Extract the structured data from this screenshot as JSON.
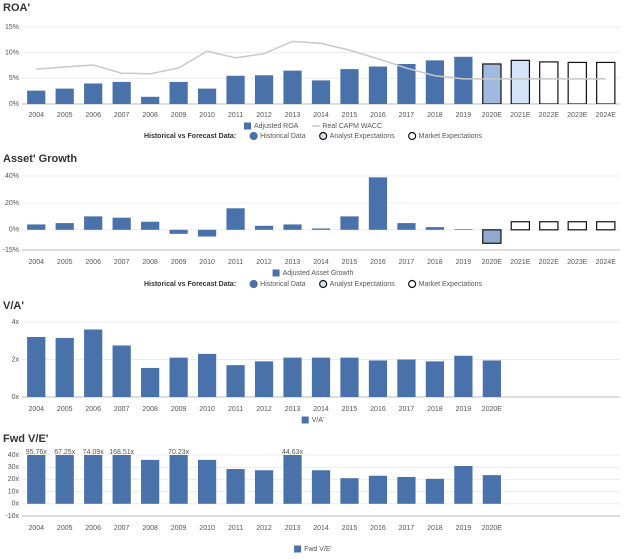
{
  "chart_data": [
    {
      "type": "bar",
      "title": "ROA'",
      "categories": [
        "2004",
        "2005",
        "2006",
        "2007",
        "2008",
        "2009",
        "2010",
        "2011",
        "2012",
        "2013",
        "2014",
        "2015",
        "2016",
        "2017",
        "2018",
        "2019",
        "2020E",
        "2021E",
        "2022E",
        "2023E",
        "2024E"
      ],
      "series": [
        {
          "name": "Adjusted ROA",
          "color": "#4a72aa",
          "colors": [
            "#4a72aa",
            "#4a72aa",
            "#4a72aa",
            "#4a72aa",
            "#4a72aa",
            "#4a72aa",
            "#4a72aa",
            "#4a72aa",
            "#4a72aa",
            "#4a72aa",
            "#4a72aa",
            "#4a72aa",
            "#4a72aa",
            "#4a72aa",
            "#4a72aa",
            "#4a72aa",
            "#a0b9de",
            "#d3e3f8",
            "#ffffff",
            "#ffffff",
            "#ffffff"
          ],
          "values": [
            2.6,
            3.0,
            4.0,
            4.3,
            1.4,
            4.3,
            3.0,
            5.5,
            5.6,
            6.5,
            4.6,
            6.8,
            7.3,
            7.8,
            8.5,
            9.2,
            7.8,
            8.5,
            8.2,
            8.1,
            8.1
          ]
        },
        {
          "name": "Real CAPM WACC",
          "type": "line",
          "color": "#c8c8c8",
          "values": [
            6.8,
            7.2,
            7.6,
            6.0,
            5.9,
            7.0,
            10.3,
            9.0,
            9.8,
            12.2,
            11.8,
            10.5,
            8.8,
            7.0,
            5.5,
            4.9,
            4.9,
            4.9,
            4.9,
            4.9,
            4.9
          ]
        }
      ],
      "ylim": [
        0,
        15
      ],
      "yticks": [
        {
          "value": 0,
          "label": "0%"
        },
        {
          "value": 5,
          "label": "5%"
        },
        {
          "value": 10,
          "label": "10%"
        },
        {
          "value": 15,
          "label": "15%"
        }
      ],
      "grid": true,
      "forecast_legend": {
        "title": "Historical vs Forecast Data:",
        "items": [
          {
            "name": "Historical Data",
            "color": "#4a72aa"
          },
          {
            "name": "Analyst Expectations",
            "color": "#d3e3f8"
          },
          {
            "name": "Market Expectations",
            "color": "#ffffff"
          }
        ]
      }
    },
    {
      "type": "bar",
      "title": "Asset' Growth",
      "categories": [
        "2004",
        "2005",
        "2006",
        "2007",
        "2008",
        "2009",
        "2010",
        "2011",
        "2012",
        "2013",
        "2014",
        "2015",
        "2016",
        "2017",
        "2018",
        "2019",
        "2020E",
        "2021E",
        "2022E",
        "2023E",
        "2024E"
      ],
      "series": [
        {
          "name": "Adjusted Asset Growth",
          "color": "#4a72aa",
          "colors": [
            "#4a72aa",
            "#4a72aa",
            "#4a72aa",
            "#4a72aa",
            "#4a72aa",
            "#4a72aa",
            "#4a72aa",
            "#4a72aa",
            "#4a72aa",
            "#4a72aa",
            "#4a72aa",
            "#4a72aa",
            "#4a72aa",
            "#4a72aa",
            "#4a72aa",
            "#4a72aa",
            "#8fa9cf",
            "#ffffff",
            "#ffffff",
            "#ffffff",
            "#ffffff"
          ],
          "values": [
            4,
            5,
            10,
            9,
            6,
            -3,
            -5,
            16,
            3,
            4,
            1,
            10,
            39,
            5,
            2,
            0.5,
            -10,
            6,
            6,
            6,
            6
          ]
        }
      ],
      "ylim": [
        -15,
        40
      ],
      "yticks": [
        {
          "value": -15,
          "label": "-15%"
        },
        {
          "value": 0,
          "label": "0%"
        },
        {
          "value": 20,
          "label": "20%"
        },
        {
          "value": 40,
          "label": "40%"
        }
      ],
      "grid": true,
      "forecast_legend": {
        "title": "Historical vs Forecast Data:",
        "items": [
          {
            "name": "Historical Data",
            "color": "#4a72aa"
          },
          {
            "name": "Analyst Expectations",
            "color": "#d3e3f8"
          },
          {
            "name": "Market Expectations",
            "color": "#ffffff"
          }
        ]
      }
    },
    {
      "type": "bar",
      "title": "V/A'",
      "categories": [
        "2004",
        "2005",
        "2006",
        "2007",
        "2008",
        "2009",
        "2010",
        "2011",
        "2012",
        "2013",
        "2014",
        "2015",
        "2016",
        "2017",
        "2018",
        "2019",
        "2020E"
      ],
      "series": [
        {
          "name": "V/A'",
          "color": "#4a72aa",
          "values": [
            3.2,
            3.15,
            3.6,
            2.75,
            1.55,
            2.1,
            2.3,
            1.7,
            1.9,
            2.1,
            2.1,
            2.1,
            1.95,
            2.0,
            1.9,
            2.2,
            1.95
          ]
        }
      ],
      "ylim": [
        0,
        4
      ],
      "yticks": [
        {
          "value": 0,
          "label": "0x"
        },
        {
          "value": 2,
          "label": "2x"
        },
        {
          "value": 4,
          "label": "4x"
        }
      ],
      "grid": true
    },
    {
      "type": "bar",
      "title": "Fwd V/E'",
      "categories": [
        "2004",
        "2005",
        "2006",
        "2007",
        "2008",
        "2009",
        "2010",
        "2011",
        "2012",
        "2013",
        "2014",
        "2015",
        "2016",
        "2017",
        "2018",
        "2019",
        "2020E"
      ],
      "series": [
        {
          "name": "Fwd V/E'",
          "color": "#4a72aa",
          "values": [
            95.76,
            67.25,
            74.09,
            168.51,
            36,
            70.23,
            36,
            28.5,
            27.5,
            44.63,
            27.5,
            21,
            23,
            22,
            20.5,
            31,
            23.5
          ],
          "value_labels": [
            "95.76x",
            "67.25x",
            "74.09x",
            "168.51x",
            null,
            "70.23x",
            null,
            null,
            null,
            "44.63x",
            null,
            null,
            null,
            null,
            null,
            null,
            null
          ]
        }
      ],
      "ylim": [
        -10,
        40
      ],
      "yticks": [
        {
          "value": -10,
          "label": "-10x"
        },
        {
          "value": 0,
          "label": "0x"
        },
        {
          "value": 10,
          "label": "10x"
        },
        {
          "value": 20,
          "label": "20x"
        },
        {
          "value": 30,
          "label": "30x"
        },
        {
          "value": 40,
          "label": "40x"
        }
      ],
      "grid": true
    }
  ]
}
